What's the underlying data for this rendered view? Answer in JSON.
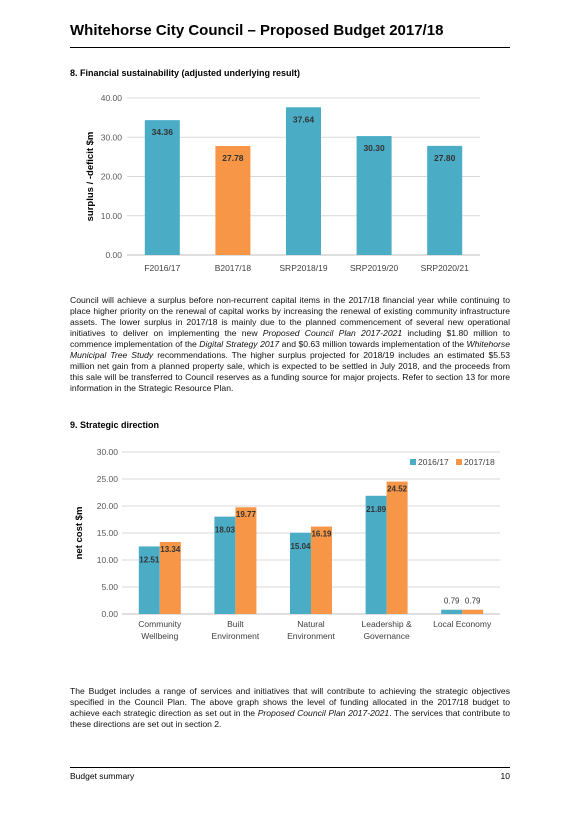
{
  "header": {
    "title": "Whitehorse City Council – Proposed Budget 2017/18"
  },
  "section8": {
    "heading": "8.   Financial sustainability (adjusted underlying result)",
    "paragraph": [
      {
        "t": "Council will achieve a surplus before non-recurrent capital items in the 2017/18 financial year while continuing to place higher priority on the renewal of capital works by increasing the renewal of existing community infrastructure assets. The lower surplus in 2017/18 is mainly due to the planned commencement of several new operational initiatives to deliver on implementing the new "
      },
      {
        "t": "Proposed Council Plan 2017-2021",
        "i": true
      },
      {
        "t": " including $1.80 million to commence implementation of the "
      },
      {
        "t": "Digital Strategy 2017",
        "i": true
      },
      {
        "t": " and $0.63 million towards implementation of the "
      },
      {
        "t": "Whitehorse Municipal Tree Study",
        "i": true
      },
      {
        "t": " recommendations. The higher surplus projected for 2018/19 includes an estimated $5.53 million net gain from a planned property sale, which is expected to be settled in July 2018, and the proceeds from this sale will be transferred to Council reserves as a funding source for major projects. Refer to section 13 for more information in the Strategic Resource Plan."
      }
    ]
  },
  "section9": {
    "heading": "9.   Strategic direction",
    "paragraph": [
      {
        "t": "The Budget includes a range of services and initiatives that will contribute to achieving the strategic objectives specified in the Council Plan. The above graph shows the level of funding allocated in the 2017/18 budget to achieve each strategic direction as set out in the "
      },
      {
        "t": "Proposed Council Plan 2017-2021",
        "i": true
      },
      {
        "t": ". The services that contribute to these directions are set out in section 2."
      }
    ]
  },
  "footer": {
    "left": "Budget summary",
    "page": "10"
  },
  "chart_data": [
    {
      "type": "bar",
      "title": "",
      "xlabel": "",
      "ylabel": "surplus / -deficit $m",
      "categories": [
        "F2016/17",
        "B2017/18",
        "SRP2018/19",
        "SRP2019/20",
        "SRP2020/21"
      ],
      "values": [
        34.36,
        27.78,
        37.64,
        30.3,
        27.8
      ],
      "value_labels": [
        "34.36",
        "27.78",
        "37.64",
        "30.30",
        "27.80"
      ],
      "colors": [
        "#4bacc6",
        "#f79646",
        "#4bacc6",
        "#4bacc6",
        "#4bacc6"
      ],
      "ylim": [
        0,
        40
      ],
      "yticks": [
        "0.00",
        "10.00",
        "20.00",
        "30.00",
        "40.00"
      ],
      "grid": true
    },
    {
      "type": "bar",
      "title": "",
      "xlabel": "",
      "ylabel": "net cost $m",
      "categories": [
        [
          "Community",
          "Wellbeing"
        ],
        [
          "Built",
          "Environment"
        ],
        [
          "Natural",
          "Environment"
        ],
        [
          "Leadership &",
          "Governance"
        ],
        [
          "Local Economy"
        ]
      ],
      "series": [
        {
          "name": "2016/17",
          "values": [
            12.51,
            18.03,
            15.04,
            21.89,
            0.79
          ],
          "labels": [
            "12.51",
            "18.03",
            "15.04",
            "21.89",
            "0.79"
          ],
          "color": "#4bacc6"
        },
        {
          "name": "2017/18",
          "values": [
            13.34,
            19.77,
            16.19,
            24.52,
            0.79
          ],
          "labels": [
            "13.34",
            "19.77",
            "16.19",
            "24.52",
            "0.79"
          ],
          "color": "#f79646"
        }
      ],
      "ylim": [
        0,
        30
      ],
      "yticks": [
        "0.00",
        "5.00",
        "10.00",
        "15.00",
        "20.00",
        "25.00",
        "30.00"
      ],
      "grid": true,
      "legend": "top-right"
    }
  ]
}
